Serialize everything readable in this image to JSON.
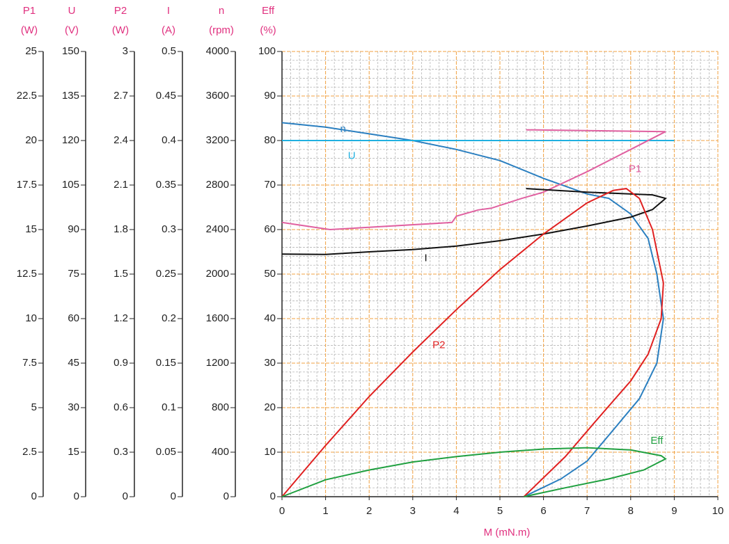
{
  "chart_data": {
    "type": "line",
    "xlabel": "M (mN.m)",
    "xlim": [
      0,
      10
    ],
    "xticks": [
      0,
      1,
      2,
      3,
      4,
      5,
      6,
      7,
      8,
      9,
      10
    ],
    "grid": true,
    "axes": [
      {
        "label": "P1",
        "unit": "(W)",
        "lim": [
          0,
          25
        ],
        "ticks": [
          0,
          2.5,
          5,
          7.5,
          10,
          12.5,
          15,
          17.5,
          20,
          22.5,
          25
        ]
      },
      {
        "label": "U",
        "unit": "(V)",
        "lim": [
          0,
          150
        ],
        "ticks": [
          0,
          15,
          30,
          45,
          60,
          75,
          90,
          105,
          120,
          135,
          150
        ]
      },
      {
        "label": "P2",
        "unit": "(W)",
        "lim": [
          0,
          3
        ],
        "ticks": [
          0,
          0.3,
          0.6,
          0.9,
          1.2,
          1.5,
          1.8,
          2.1,
          2.4,
          2.7,
          3
        ]
      },
      {
        "label": "I",
        "unit": "(A)",
        "lim": [
          0,
          0.5
        ],
        "ticks": [
          0,
          0.05,
          0.1,
          0.15,
          0.2,
          0.25,
          0.3,
          0.35,
          0.4,
          0.45,
          0.5
        ]
      },
      {
        "label": "n",
        "unit": "(rpm)",
        "lim": [
          0,
          4000
        ],
        "ticks": [
          0,
          400,
          800,
          1200,
          1600,
          2000,
          2400,
          2800,
          3200,
          3600,
          4000
        ]
      },
      {
        "label": "Eff",
        "unit": "(%)",
        "lim": [
          0,
          100
        ],
        "ticks": [
          0,
          10,
          20,
          30,
          40,
          50,
          60,
          70,
          80,
          90,
          100
        ]
      }
    ],
    "series": [
      {
        "name": "n",
        "axis": "n",
        "color": "#2a7fc0",
        "x": [
          0,
          1,
          2,
          3,
          4,
          5,
          6,
          7,
          7.5,
          8,
          8.4,
          8.6,
          8.75,
          8.6,
          8.2,
          7.6,
          7,
          6.4,
          5.55
        ],
        "values": [
          3360,
          3320,
          3260,
          3200,
          3120,
          3020,
          2860,
          2720,
          2680,
          2540,
          2320,
          2000,
          1600,
          1200,
          880,
          600,
          320,
          160,
          0
        ]
      },
      {
        "name": "U",
        "axis": "U",
        "color": "#20b0e0",
        "x": [
          0,
          9
        ],
        "values": [
          120,
          120
        ]
      },
      {
        "name": "P1",
        "axis": "P1",
        "color": "#e060a0",
        "x": [
          0,
          1.1,
          3.9,
          4.0,
          4.5,
          4.8,
          5.5,
          6,
          7,
          8,
          8.8,
          5.6
        ],
        "values": [
          15.4,
          15,
          15.4,
          15.75,
          16.1,
          16.2,
          16.75,
          17.1,
          18.25,
          19.5,
          20.5,
          20.6
        ]
      },
      {
        "name": "I",
        "axis": "I",
        "color": "#111111",
        "x": [
          0,
          1,
          2,
          3,
          4,
          5,
          6,
          7,
          8,
          8.5,
          8.8,
          8.5,
          7,
          5.6
        ],
        "values": [
          0.2725,
          0.272,
          0.275,
          0.2775,
          0.2815,
          0.2875,
          0.295,
          0.304,
          0.314,
          0.3225,
          0.335,
          0.339,
          0.342,
          0.346
        ]
      },
      {
        "name": "P2",
        "axis": "P2",
        "color": "#e02020",
        "x": [
          0,
          1,
          2,
          3,
          4,
          5,
          6,
          7,
          7.6,
          7.9,
          8.2,
          8.5,
          8.75,
          8.7,
          8.4,
          8,
          7.2,
          6.5,
          5.55
        ],
        "values": [
          0,
          0.345,
          0.675,
          0.975,
          1.26,
          1.53,
          1.77,
          1.98,
          2.064,
          2.076,
          2.01,
          1.8,
          1.44,
          1.2,
          0.96,
          0.78,
          0.51,
          0.27,
          0
        ]
      },
      {
        "name": "Eff",
        "axis": "Eff",
        "color": "#20a040",
        "x": [
          0,
          1,
          2,
          3,
          4,
          5,
          6,
          7,
          8,
          8.7,
          8.8,
          8.3,
          7.5,
          6.5,
          5.55
        ],
        "values": [
          0,
          3.8,
          6,
          7.8,
          9,
          10,
          10.7,
          11,
          10.5,
          9.2,
          8.5,
          6,
          4,
          2,
          0
        ]
      }
    ]
  }
}
